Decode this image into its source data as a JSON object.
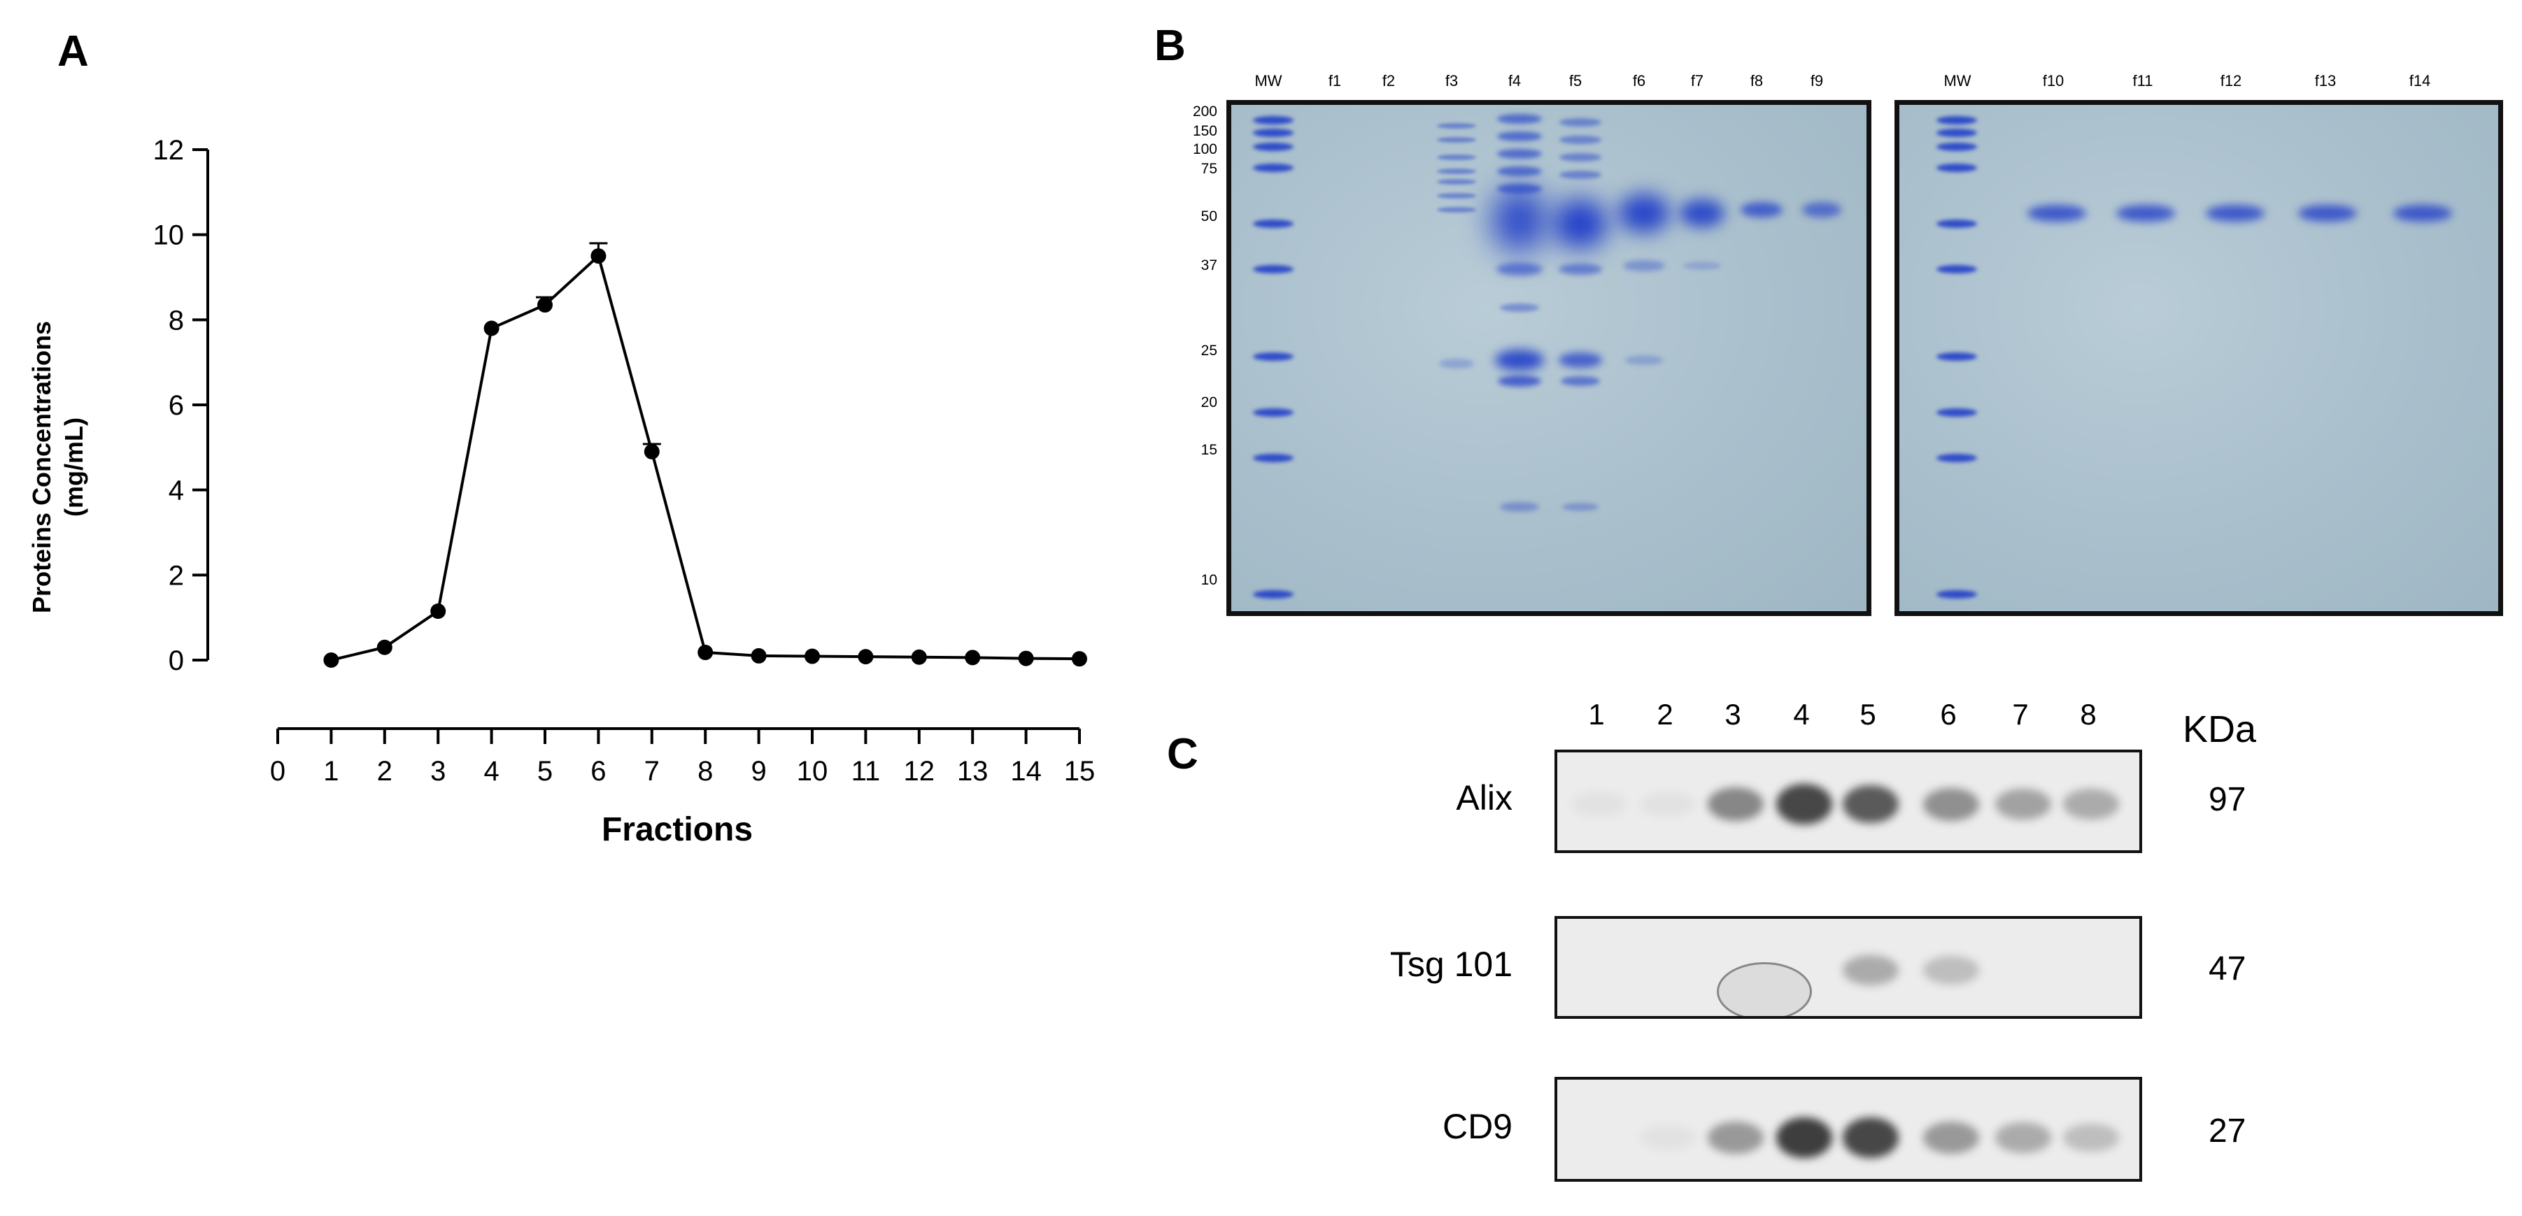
{
  "panels": {
    "a": "A",
    "b": "B",
    "c": "C"
  },
  "chart_data": {
    "type": "line",
    "title": "",
    "xlabel": "Fractions",
    "ylabel_line1": "Proteins Concentrations",
    "ylabel_line2": "(mg/mL)",
    "xlim": [
      0,
      15
    ],
    "ylim": [
      0,
      12
    ],
    "xticks": [
      "0",
      "1",
      "2",
      "3",
      "4",
      "5",
      "6",
      "7",
      "8",
      "9",
      "10",
      "11",
      "12",
      "13",
      "14",
      "15"
    ],
    "yticks": [
      "0",
      "2",
      "4",
      "6",
      "8",
      "10",
      "12"
    ],
    "grid": false,
    "series": [
      {
        "x": [
          1,
          2,
          3,
          4,
          5,
          6,
          7,
          8,
          9,
          10,
          11,
          12,
          13,
          14,
          15
        ],
        "y": [
          0.0,
          0.3,
          1.15,
          7.8,
          8.35,
          9.5,
          4.9,
          0.18,
          0.1,
          0.09,
          0.08,
          0.07,
          0.06,
          0.04,
          0.03
        ],
        "err": [
          0,
          0,
          0,
          0,
          0.18,
          0.3,
          0.18,
          0,
          0,
          0,
          0,
          0,
          0,
          0,
          0
        ]
      }
    ]
  },
  "gel": {
    "left": {
      "lanes": [
        "MW",
        "f1",
        "f2",
        "f3",
        "f4",
        "f5",
        "f6",
        "f7",
        "f8",
        "f9"
      ],
      "mw_markers": [
        "200",
        "150",
        "100",
        "75",
        "50",
        "37",
        "25",
        "20",
        "15",
        "10"
      ]
    },
    "right": {
      "lanes": [
        "MW",
        "f10",
        "f11",
        "f12",
        "f13",
        "f14"
      ]
    }
  },
  "western_blot": {
    "lanes": [
      "1",
      "2",
      "3",
      "4",
      "5",
      "6",
      "7",
      "8"
    ],
    "kda_header": "KDa",
    "rows": [
      {
        "protein": "Alix",
        "kda": "97"
      },
      {
        "protein": "Tsg 101",
        "kda": "47"
      },
      {
        "protein": "CD9",
        "kda": "27"
      }
    ]
  }
}
